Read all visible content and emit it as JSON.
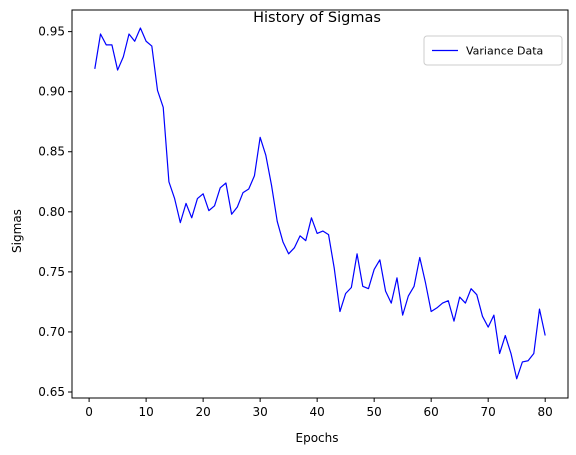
{
  "chart_data": {
    "type": "line",
    "title": "History of Sigmas",
    "xlabel": "Epochs",
    "ylabel": "Sigmas",
    "xlim": [
      -3,
      84
    ],
    "ylim": [
      0.645,
      0.968
    ],
    "xticks": [
      0,
      10,
      20,
      30,
      40,
      50,
      60,
      70,
      80
    ],
    "yticks": [
      0.65,
      0.7,
      0.75,
      0.8,
      0.85,
      0.9,
      0.95
    ],
    "grid": false,
    "legend_position": "top-right",
    "series": [
      {
        "name": "Variance Data",
        "color": "#0000ff",
        "x": [
          1,
          2,
          3,
          4,
          5,
          6,
          7,
          8,
          9,
          10,
          11,
          12,
          13,
          14,
          15,
          16,
          17,
          18,
          19,
          20,
          21,
          22,
          23,
          24,
          25,
          26,
          27,
          28,
          29,
          30,
          31,
          32,
          33,
          34,
          35,
          36,
          37,
          38,
          39,
          40,
          41,
          42,
          43,
          44,
          45,
          46,
          47,
          48,
          49,
          50,
          51,
          52,
          53,
          54,
          55,
          56,
          57,
          58,
          59,
          60,
          61,
          62,
          63,
          64,
          65,
          66,
          67,
          68,
          69,
          70,
          71,
          72,
          73,
          74,
          75,
          76,
          77,
          78,
          79,
          80
        ],
        "y": [
          0.919,
          0.948,
          0.939,
          0.939,
          0.918,
          0.929,
          0.948,
          0.942,
          0.953,
          0.942,
          0.938,
          0.901,
          0.887,
          0.825,
          0.811,
          0.791,
          0.807,
          0.795,
          0.811,
          0.815,
          0.801,
          0.805,
          0.82,
          0.824,
          0.798,
          0.804,
          0.816,
          0.819,
          0.83,
          0.862,
          0.847,
          0.822,
          0.792,
          0.775,
          0.765,
          0.77,
          0.78,
          0.776,
          0.795,
          0.782,
          0.784,
          0.781,
          0.753,
          0.717,
          0.732,
          0.737,
          0.765,
          0.738,
          0.736,
          0.752,
          0.76,
          0.734,
          0.724,
          0.745,
          0.714,
          0.73,
          0.738,
          0.762,
          0.741,
          0.717,
          0.72,
          0.724,
          0.726,
          0.709,
          0.729,
          0.724,
          0.736,
          0.731,
          0.713,
          0.704,
          0.714,
          0.682,
          0.697,
          0.682,
          0.661,
          0.675,
          0.676,
          0.682,
          0.719,
          0.697
        ]
      }
    ]
  }
}
